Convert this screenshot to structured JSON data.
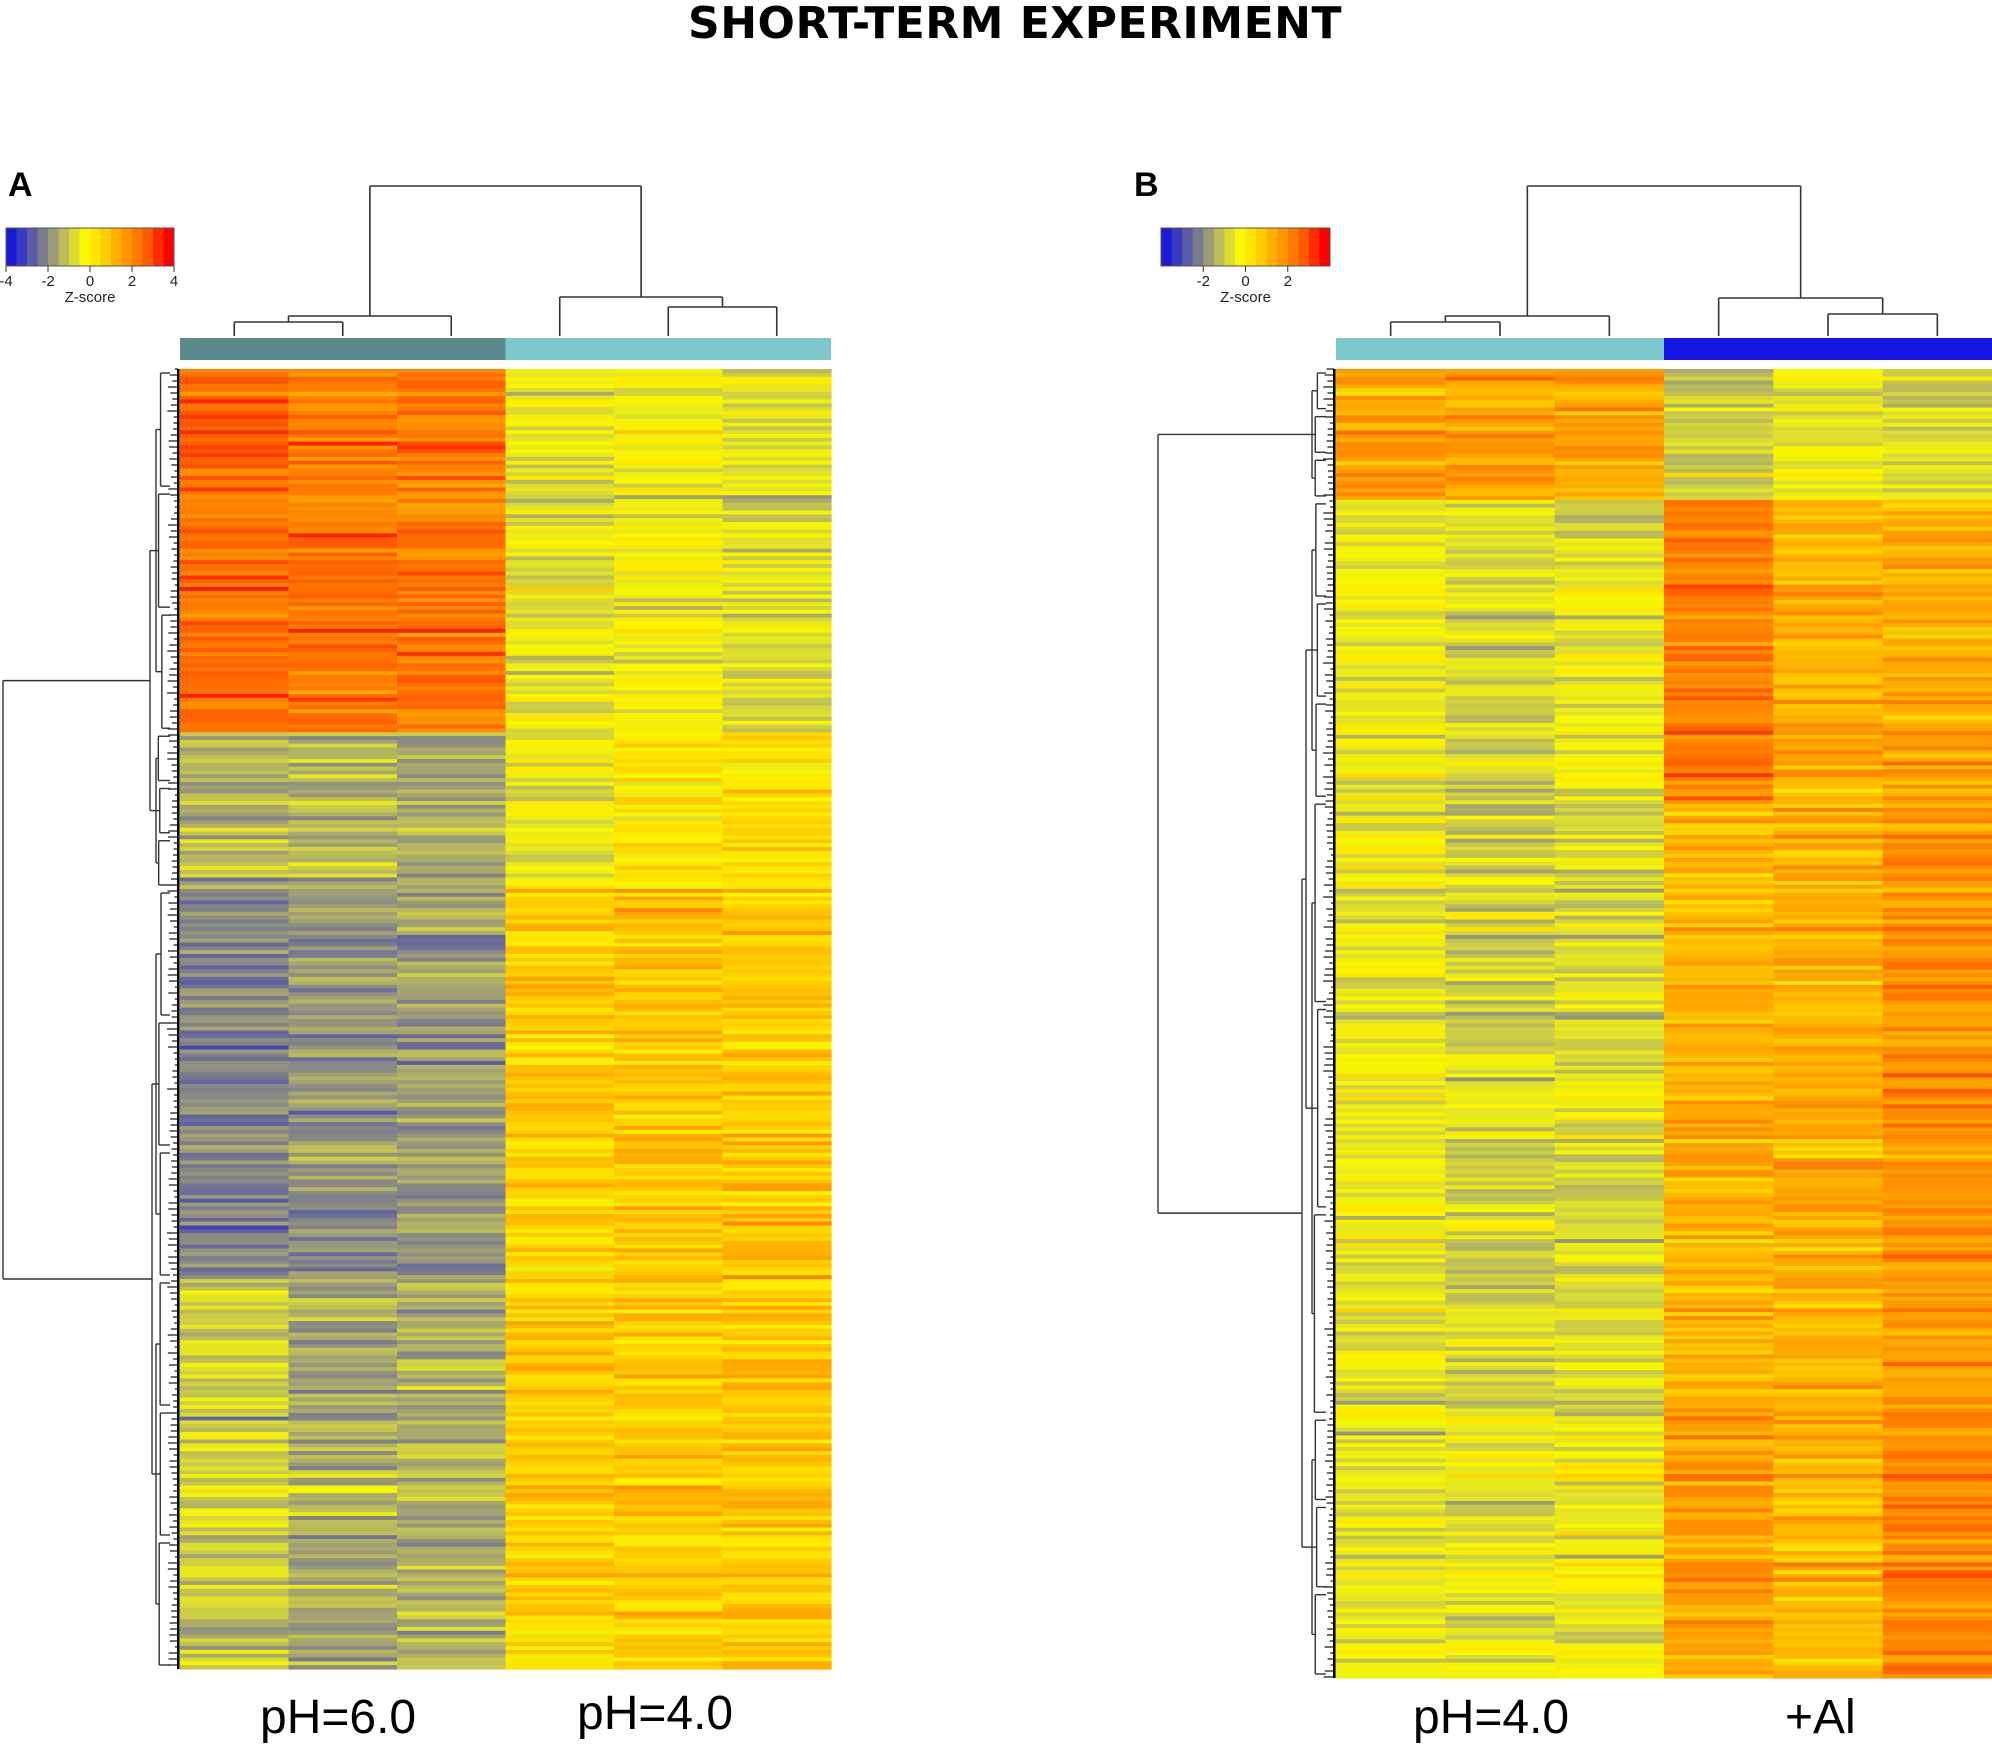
{
  "figure": {
    "title": "SHORT-TERM EXPERIMENT"
  },
  "colors": {
    "scale": [
      "#1a1ad8",
      "#3a3ac0",
      "#5a5aa6",
      "#7b7b8e",
      "#9b9b7a",
      "#bcbc5a",
      "#dcdc34",
      "#f8f800",
      "#ffe600",
      "#ffcc00",
      "#ffb000",
      "#ff9600",
      "#ff7a00",
      "#ff5a00",
      "#ff2a00",
      "#ff0000"
    ],
    "group_pH6": "#5a8a8c",
    "group_pH4": "#7dc8cc",
    "group_Al": "#1616e6",
    "dendrogram": "#333333"
  },
  "chart_data": [
    {
      "type": "heatmap",
      "panel_label": "A",
      "title": "SHORT-TERM EXPERIMENT",
      "color_key": {
        "label": "Z-score",
        "ticks": [
          "-4",
          "-2",
          "0",
          "2",
          "4"
        ],
        "range": [
          -4,
          4
        ]
      },
      "groups": [
        {
          "name": "pH=6.0",
          "samples": 3,
          "color": "#5a8a8c"
        },
        {
          "name": "pH=4.0",
          "samples": 3,
          "color": "#7dc8cc"
        }
      ],
      "genes": 340,
      "row_clusters": [
        {
          "fraction": 0.28,
          "means": [
            2.6,
            2.4,
            2.4,
            -0.6,
            -0.4,
            -0.7
          ]
        },
        {
          "fraction": 0.12,
          "means": [
            -1.4,
            -1.5,
            -1.7,
            -0.6,
            0.1,
            0.4
          ]
        },
        {
          "fraction": 0.3,
          "means": [
            -2.2,
            -1.9,
            -1.9,
            0.8,
            0.9,
            0.9
          ]
        },
        {
          "fraction": 0.3,
          "means": [
            -1.0,
            -1.6,
            -1.5,
            0.7,
            0.8,
            0.8
          ]
        }
      ]
    },
    {
      "type": "heatmap",
      "panel_label": "B",
      "color_key": {
        "label": "Z-score",
        "ticks": [
          "-2",
          "0",
          "2"
        ],
        "range": [
          -4,
          4
        ]
      },
      "groups": [
        {
          "name": "pH=4.0",
          "samples": 3,
          "color": "#7dc8cc"
        },
        {
          "name": "+Al",
          "samples": 3,
          "color": "#1616e6"
        }
      ],
      "genes": 340,
      "row_clusters": [
        {
          "fraction": 0.1,
          "means": [
            1.6,
            1.7,
            1.5,
            -1.0,
            -0.6,
            -0.8
          ]
        },
        {
          "fraction": 0.23,
          "means": [
            -0.5,
            -0.9,
            -0.6,
            2.3,
            1.2,
            1.4
          ]
        },
        {
          "fraction": 0.47,
          "means": [
            -0.5,
            -0.9,
            -0.8,
            1.3,
            1.4,
            1.9
          ]
        },
        {
          "fraction": 0.2,
          "means": [
            -0.6,
            -0.6,
            -0.3,
            1.7,
            1.2,
            2.2
          ]
        }
      ]
    }
  ]
}
